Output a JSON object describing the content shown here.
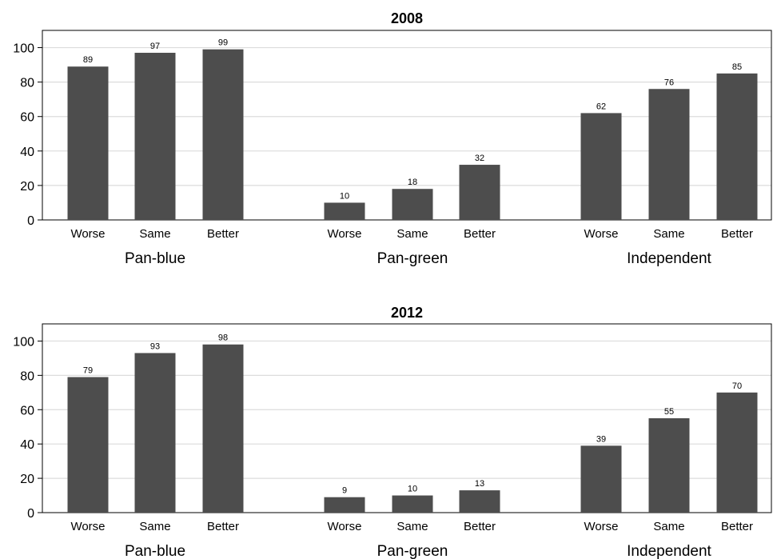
{
  "chart_data": [
    {
      "type": "bar",
      "title": "2008",
      "xlabel": "",
      "ylabel": "",
      "ylim": [
        0,
        110
      ],
      "yticks": [
        0,
        20,
        40,
        60,
        80,
        100
      ],
      "grid": true,
      "groups": [
        {
          "name": "Pan-blue",
          "categories": [
            "Worse",
            "Same",
            "Better"
          ],
          "values": [
            89,
            97,
            99
          ]
        },
        {
          "name": "Pan-green",
          "categories": [
            "Worse",
            "Same",
            "Better"
          ],
          "values": [
            10,
            18,
            32
          ]
        },
        {
          "name": "Independent",
          "categories": [
            "Worse",
            "Same",
            "Better"
          ],
          "values": [
            62,
            76,
            85
          ]
        }
      ],
      "bar_color": "#4d4d4d"
    },
    {
      "type": "bar",
      "title": "2012",
      "xlabel": "",
      "ylabel": "",
      "ylim": [
        0,
        110
      ],
      "yticks": [
        0,
        20,
        40,
        60,
        80,
        100
      ],
      "grid": true,
      "groups": [
        {
          "name": "Pan-blue",
          "categories": [
            "Worse",
            "Same",
            "Better"
          ],
          "values": [
            79,
            93,
            98
          ]
        },
        {
          "name": "Pan-green",
          "categories": [
            "Worse",
            "Same",
            "Better"
          ],
          "values": [
            9,
            10,
            13
          ]
        },
        {
          "name": "Independent",
          "categories": [
            "Worse",
            "Same",
            "Better"
          ],
          "values": [
            39,
            55,
            70
          ]
        }
      ],
      "bar_color": "#4d4d4d"
    }
  ],
  "colors": {
    "bar": "#4d4d4d",
    "grid": "#dcdcdc",
    "axis": "#000000"
  }
}
